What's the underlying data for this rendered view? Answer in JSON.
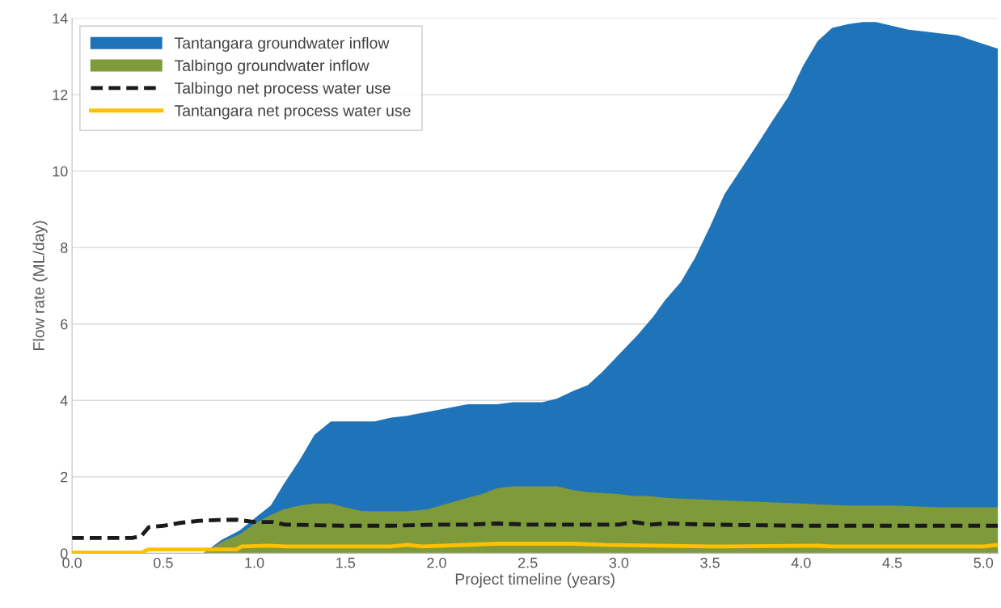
{
  "chart_data": {
    "type": "area",
    "xlabel": "Project timeline (years)",
    "ylabel": "Flow rate (ML/day)",
    "xlim": [
      0,
      5.08
    ],
    "xticks": [
      {
        "value": 0,
        "label": "0.0"
      },
      {
        "value": 0.5,
        "label": "0.5"
      },
      {
        "value": 1,
        "label": "1.0"
      },
      {
        "value": 1.5,
        "label": "1.5"
      },
      {
        "value": 2,
        "label": "2.0"
      },
      {
        "value": 2.5,
        "label": "2.5"
      },
      {
        "value": 3,
        "label": "3.0"
      },
      {
        "value": 3.5,
        "label": "3.5"
      },
      {
        "value": 4,
        "label": "4.0"
      },
      {
        "value": 4.5,
        "label": "4.5"
      },
      {
        "value": 5,
        "label": "5.0"
      }
    ],
    "ylim": [
      0,
      14
    ],
    "yticks": [
      0,
      2,
      4,
      6,
      8,
      10,
      12,
      14
    ],
    "grid": "y",
    "legend": "top left",
    "series": [
      {
        "name": "Tantangara groundwater inflow",
        "color": "#1f74b9",
        "x": [
          0,
          0.72,
          0.82,
          0.92,
          1.01,
          1.09,
          1.16,
          1.25,
          1.33,
          1.42,
          1.55,
          1.66,
          1.75,
          1.84,
          1.95,
          2.06,
          2.17,
          2.33,
          2.42,
          2.58,
          2.66,
          2.75,
          2.83,
          2.91,
          3.0,
          3.1,
          3.19,
          3.25,
          3.34,
          3.42,
          3.5,
          3.58,
          3.67,
          3.76,
          3.84,
          3.93,
          4.01,
          4.09,
          4.17,
          4.26,
          4.34,
          4.41,
          4.5,
          4.59,
          4.68,
          4.77,
          4.86,
          4.92,
          5.08
        ],
        "values": [
          0,
          0,
          0.35,
          0.6,
          0.95,
          1.25,
          1.8,
          2.45,
          3.1,
          3.45,
          3.45,
          3.45,
          3.55,
          3.6,
          3.7,
          3.8,
          3.9,
          3.9,
          3.95,
          3.95,
          4.05,
          4.25,
          4.4,
          4.75,
          5.2,
          5.7,
          6.2,
          6.6,
          7.1,
          7.75,
          8.55,
          9.4,
          10.05,
          10.7,
          11.3,
          11.95,
          12.75,
          13.4,
          13.75,
          13.85,
          13.9,
          13.9,
          13.8,
          13.7,
          13.65,
          13.6,
          13.55,
          13.45,
          13.2
        ]
      },
      {
        "name": "Talbingo groundwater inflow",
        "color": "#7e9a3a",
        "x": [
          0,
          0.72,
          0.82,
          0.92,
          1.01,
          1.09,
          1.16,
          1.25,
          1.33,
          1.42,
          1.5,
          1.59,
          1.75,
          1.84,
          1.95,
          2.06,
          2.17,
          2.25,
          2.33,
          2.42,
          2.58,
          2.66,
          2.75,
          2.83,
          3.0,
          3.08,
          3.17,
          3.25,
          3.5,
          3.75,
          4.0,
          4.25,
          4.5,
          4.75,
          5.08
        ],
        "values": [
          0,
          0,
          0.3,
          0.5,
          0.8,
          1.0,
          1.15,
          1.25,
          1.3,
          1.3,
          1.2,
          1.1,
          1.1,
          1.1,
          1.15,
          1.3,
          1.45,
          1.55,
          1.7,
          1.75,
          1.75,
          1.75,
          1.65,
          1.6,
          1.55,
          1.5,
          1.5,
          1.45,
          1.4,
          1.35,
          1.3,
          1.25,
          1.25,
          1.2,
          1.2
        ]
      },
      {
        "name": "Talbingo net process water use",
        "type": "line",
        "line_style": "dashed",
        "color": "#1a1a1a",
        "x": [
          0,
          0.33,
          0.38,
          0.42,
          0.5,
          0.6,
          0.7,
          0.8,
          0.9,
          1.0,
          1.1,
          1.17,
          1.5,
          1.75,
          2.0,
          2.17,
          2.33,
          2.5,
          2.75,
          3.0,
          3.08,
          3.17,
          3.25,
          3.5,
          4.0,
          4.25,
          4.5,
          5.08
        ],
        "values": [
          0.4,
          0.4,
          0.45,
          0.68,
          0.72,
          0.8,
          0.85,
          0.87,
          0.88,
          0.82,
          0.82,
          0.75,
          0.72,
          0.72,
          0.75,
          0.75,
          0.78,
          0.75,
          0.75,
          0.75,
          0.82,
          0.75,
          0.78,
          0.75,
          0.72,
          0.72,
          0.72,
          0.72
        ]
      },
      {
        "name": "Tantangara net process water use",
        "type": "line",
        "line_style": "solid",
        "color": "#ffc000",
        "x": [
          0,
          0.38,
          0.42,
          0.9,
          0.93,
          1.08,
          1.17,
          1.75,
          1.84,
          1.92,
          2.33,
          2.75,
          2.92,
          3.5,
          3.58,
          4.08,
          4.17,
          5.0,
          5.08
        ],
        "values": [
          0.02,
          0.02,
          0.1,
          0.1,
          0.18,
          0.2,
          0.18,
          0.18,
          0.22,
          0.18,
          0.25,
          0.25,
          0.22,
          0.18,
          0.18,
          0.2,
          0.18,
          0.18,
          0.22
        ]
      }
    ]
  }
}
